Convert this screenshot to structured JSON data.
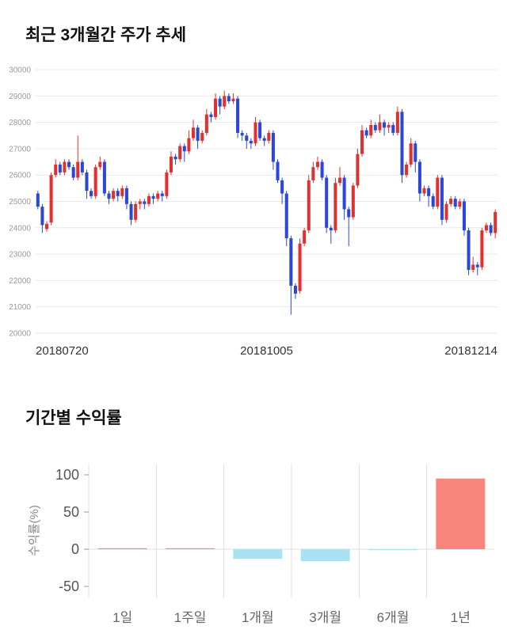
{
  "page": {
    "background": "#ffffff"
  },
  "price_chart": {
    "title": "최근 3개월간 주가 추세"
  },
  "returns_chart": {
    "title": "기간별 수익률"
  },
  "chart_data": [
    {
      "type": "candlestick",
      "title": "최근 3개월간 주가 추세",
      "ylim": [
        20000,
        30000
      ],
      "yticks": [
        20000,
        21000,
        22000,
        23000,
        24000,
        25000,
        26000,
        27000,
        28000,
        29000,
        30000
      ],
      "xtick_labels": [
        "20180720",
        "20181005",
        "20181214"
      ],
      "up_color": "#e03131",
      "down_color": "#2b47d9",
      "grid_color": "#e8e8e8",
      "candles": [
        [
          25300,
          25400,
          24700,
          24800
        ],
        [
          24800,
          24900,
          23800,
          24100
        ],
        [
          23950,
          24250,
          23850,
          24150
        ],
        [
          24200,
          26100,
          24100,
          26000
        ],
        [
          26000,
          26600,
          25900,
          26400
        ],
        [
          26400,
          26500,
          26000,
          26100
        ],
        [
          26100,
          26600,
          26000,
          26500
        ],
        [
          26500,
          26600,
          26200,
          26300
        ],
        [
          26300,
          26400,
          25800,
          25900
        ],
        [
          25900,
          27500,
          25800,
          26500
        ],
        [
          26500,
          26600,
          26000,
          26100
        ],
        [
          26100,
          26200,
          25100,
          25400
        ],
        [
          25400,
          25500,
          25100,
          25200
        ],
        [
          25200,
          26400,
          25100,
          26300
        ],
        [
          26300,
          26700,
          26200,
          26500
        ],
        [
          26500,
          26600,
          25200,
          25300
        ],
        [
          25300,
          25400,
          24900,
          25100
        ],
        [
          25100,
          25500,
          25000,
          25400
        ],
        [
          25400,
          25500,
          25000,
          25200
        ],
        [
          25200,
          25600,
          25100,
          25500
        ],
        [
          25500,
          25600,
          24700,
          24900
        ],
        [
          24900,
          25000,
          24100,
          24300
        ],
        [
          24300,
          25000,
          24200,
          24900
        ],
        [
          24900,
          25100,
          24700,
          25000
        ],
        [
          25000,
          25100,
          24700,
          24900
        ],
        [
          24900,
          25300,
          24800,
          25200
        ],
        [
          25200,
          25300,
          24900,
          25100
        ],
        [
          25100,
          25400,
          25000,
          25300
        ],
        [
          25300,
          25400,
          25000,
          25200
        ],
        [
          25200,
          26200,
          25100,
          26100
        ],
        [
          26100,
          26900,
          26000,
          26700
        ],
        [
          26700,
          26800,
          26400,
          26600
        ],
        [
          26600,
          27200,
          26500,
          27100
        ],
        [
          27100,
          27200,
          26500,
          26900
        ],
        [
          26900,
          27700,
          26800,
          27400
        ],
        [
          27400,
          28100,
          27300,
          27800
        ],
        [
          27800,
          27900,
          27000,
          27300
        ],
        [
          27300,
          27700,
          27200,
          27600
        ],
        [
          27600,
          28500,
          27500,
          28300
        ],
        [
          28300,
          28400,
          28000,
          28200
        ],
        [
          28200,
          29100,
          28100,
          28900
        ],
        [
          28900,
          29000,
          28300,
          28600
        ],
        [
          28600,
          29200,
          28500,
          29000
        ],
        [
          29000,
          29100,
          28700,
          28800
        ],
        [
          28800,
          29100,
          28700,
          28900
        ],
        [
          28900,
          29000,
          27400,
          27600
        ],
        [
          27600,
          27700,
          27300,
          27500
        ],
        [
          27500,
          27600,
          27000,
          27300
        ],
        [
          27300,
          27400,
          27000,
          27200
        ],
        [
          27200,
          28200,
          27100,
          28000
        ],
        [
          28000,
          28100,
          27300,
          27400
        ],
        [
          27400,
          27500,
          27100,
          27300
        ],
        [
          27300,
          27700,
          27200,
          27600
        ],
        [
          27600,
          27700,
          26200,
          26500
        ],
        [
          26500,
          26600,
          25700,
          25800
        ],
        [
          25800,
          25900,
          24900,
          25300
        ],
        [
          25300,
          25400,
          23300,
          23600
        ],
        [
          23600,
          23700,
          20700,
          21800
        ],
        [
          21800,
          21900,
          21300,
          21500
        ],
        [
          21600,
          23600,
          21500,
          23400
        ],
        [
          23400,
          24000,
          23300,
          23900
        ],
        [
          23900,
          26000,
          23800,
          25800
        ],
        [
          25800,
          26500,
          25700,
          26300
        ],
        [
          26300,
          26700,
          26200,
          26500
        ],
        [
          26500,
          26600,
          25800,
          25900
        ],
        [
          25900,
          26000,
          23800,
          24000
        ],
        [
          24000,
          24100,
          23400,
          23900
        ],
        [
          23900,
          25900,
          23800,
          25700
        ],
        [
          25700,
          26300,
          25600,
          25900
        ],
        [
          25900,
          26000,
          24300,
          24700
        ],
        [
          24700,
          24800,
          23300,
          24400
        ],
        [
          24400,
          25700,
          24300,
          25600
        ],
        [
          25600,
          27000,
          25500,
          26800
        ],
        [
          26800,
          27900,
          26700,
          27700
        ],
        [
          27700,
          27800,
          27400,
          27500
        ],
        [
          27500,
          28100,
          27400,
          27900
        ],
        [
          27900,
          28000,
          27600,
          27700
        ],
        [
          27700,
          28300,
          27600,
          28000
        ],
        [
          28000,
          28100,
          27500,
          27800
        ],
        [
          27800,
          28000,
          27600,
          27900
        ],
        [
          27900,
          28000,
          27500,
          27600
        ],
        [
          27600,
          28600,
          27500,
          28400
        ],
        [
          28400,
          28500,
          25700,
          26000
        ],
        [
          26000,
          26500,
          25900,
          26400
        ],
        [
          26400,
          27400,
          26300,
          27200
        ],
        [
          27200,
          27300,
          26100,
          26500
        ],
        [
          26500,
          26600,
          25000,
          25300
        ],
        [
          25300,
          25600,
          25200,
          25500
        ],
        [
          25500,
          25600,
          24800,
          25200
        ],
        [
          25200,
          25300,
          24700,
          24800
        ],
        [
          24800,
          26000,
          24700,
          25900
        ],
        [
          25900,
          26000,
          24100,
          24300
        ],
        [
          24300,
          25000,
          24200,
          24900
        ],
        [
          24900,
          25200,
          24800,
          25100
        ],
        [
          25100,
          25200,
          24700,
          24800
        ],
        [
          24800,
          25100,
          24700,
          25000
        ],
        [
          25000,
          25100,
          23700,
          23900
        ],
        [
          23900,
          24000,
          22200,
          22400
        ],
        [
          22400,
          22900,
          22300,
          22600
        ],
        [
          22600,
          22700,
          22200,
          22500
        ],
        [
          22500,
          24000,
          22400,
          23900
        ],
        [
          23900,
          24200,
          23800,
          24100
        ],
        [
          24100,
          24200,
          23700,
          23800
        ],
        [
          23800,
          24700,
          23600,
          24600
        ]
      ]
    },
    {
      "type": "bar",
      "title": "기간별 수익률",
      "categories": [
        "1일",
        "1주일",
        "1개월",
        "3개월",
        "6개월",
        "1년"
      ],
      "values": [
        0,
        0.3,
        -13,
        -16,
        -1.2,
        95
      ],
      "ylabel": "수익률(%)",
      "yticks": [
        100,
        50,
        0,
        -50
      ],
      "ylim": [
        -50,
        100
      ],
      "positive_color": "#f9857d",
      "negative_color": "#a9e2f3",
      "grid_color": "#e0e0e0"
    }
  ]
}
